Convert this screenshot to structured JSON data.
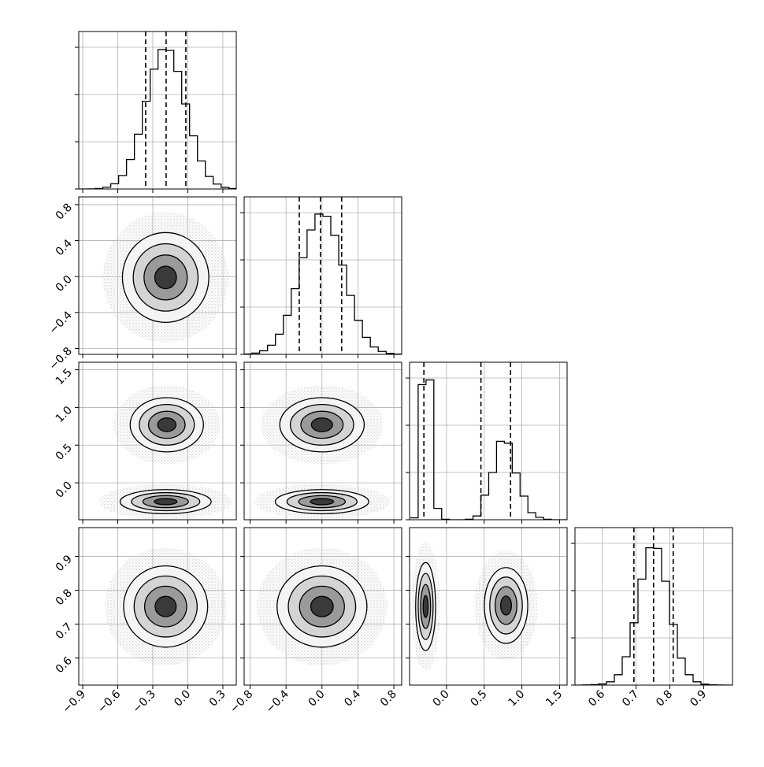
{
  "chart_data": {
    "type": "corner",
    "grid": true,
    "color": "#000000",
    "contour_sigmas": [
      0.5,
      1,
      1.5,
      2
    ],
    "contour_fills": [
      "#f4f4f4",
      "#d4d4d4",
      "#9a9a9a",
      "#3a3a3a"
    ],
    "hist_ylim": [
      0,
      1667
    ],
    "hist_yticks": [
      0,
      500,
      1000,
      1500
    ],
    "params": [
      {
        "lim": [
          -0.934,
          0.415
        ],
        "ticks": [
          {
            "value": -0.9,
            "label": "−0.9"
          },
          {
            "value": -0.6,
            "label": "−0.6"
          },
          {
            "value": -0.3,
            "label": "−0.3"
          },
          {
            "value": 0,
            "label": "0.0"
          },
          0.3
        ],
        "quantiles": [
          -0.361,
          -0.186,
          -0.017
        ],
        "bins": [
          -0.93,
          -0.8625,
          -0.795,
          -0.7275,
          -0.66,
          -0.5925,
          -0.525,
          -0.4575,
          -0.39,
          -0.3225,
          -0.255,
          -0.1875,
          -0.12,
          -0.0525,
          0.015,
          0.0825,
          0.15,
          0.2175,
          0.285,
          0.3525,
          0.42
        ],
        "counts": [
          0,
          1,
          5,
          19,
          55,
          143,
          312,
          580,
          928,
          1268,
          1476,
          1467,
          1245,
          900,
          563,
          297,
          133,
          52,
          17,
          5
        ]
      },
      {
        "lim": [
          -0.866,
          0.887
        ],
        "ticks": [
          {
            "value": -0.8,
            "label": "−0.8"
          },
          {
            "value": -0.4,
            "label": "−0.4"
          },
          {
            "value": 0,
            "label": "0.0"
          },
          0.4,
          0.8
        ],
        "quantiles": [
          -0.253,
          -0.017,
          0.219
        ],
        "bins": [
          -0.87,
          -0.782,
          -0.694,
          -0.606,
          -0.518,
          -0.43,
          -0.342,
          -0.254,
          -0.166,
          -0.078,
          0.01,
          0.098,
          0.186,
          0.274,
          0.362,
          0.45,
          0.538,
          0.626,
          0.714,
          0.802,
          0.89
        ],
        "counts": [
          4,
          13,
          38,
          97,
          213,
          413,
          695,
          1023,
          1317,
          1485,
          1462,
          1260,
          945,
          624,
          360,
          180,
          78,
          31,
          10,
          3
        ]
      },
      {
        "lim": [
          -0.49,
          1.6
        ],
        "ticks": [
          {
            "value": 0,
            "label": "0.0"
          },
          0.5,
          {
            "value": 1,
            "label": "1.0"
          },
          1.5
        ],
        "quantiles": [
          -0.3,
          0.457,
          0.85
        ],
        "bins": [
          -0.48,
          -0.376,
          -0.272,
          -0.168,
          -0.064,
          0.04,
          0.144,
          0.248,
          0.352,
          0.456,
          0.56,
          0.664,
          0.768,
          0.872,
          0.976,
          1.08,
          1.184,
          1.288,
          1.392,
          1.496,
          1.6
        ],
        "counts": [
          20,
          1430,
          1480,
          120,
          5,
          0,
          0,
          5,
          40,
          260,
          500,
          830,
          810,
          495,
          250,
          75,
          25,
          5,
          0,
          0
        ]
      },
      {
        "lim": [
          0.52,
          0.985
        ],
        "ticks": [
          0.6,
          0.7,
          0.8,
          0.9
        ],
        "quantiles": [
          0.694,
          0.752,
          0.81
        ],
        "bins": [
          0.52,
          0.54325,
          0.5665,
          0.58975,
          0.613,
          0.63625,
          0.6595,
          0.68275,
          0.706,
          0.72925,
          0.7525,
          0.77575,
          0.799,
          0.82225,
          0.8455,
          0.86875,
          0.892,
          0.91525,
          0.9385,
          0.96175,
          0.985
        ],
        "counts": [
          0,
          2,
          5,
          12,
          35,
          110,
          300,
          660,
          1122,
          1454,
          1447,
          1099,
          643,
          286,
          110,
          35,
          10,
          3,
          1,
          0
        ]
      }
    ],
    "panels": [
      {
        "row": 1,
        "col": 0,
        "blobs": [
          {
            "cx": -0.19,
            "cy": -0.01,
            "sx": 0.185,
            "sy": 0.25
          }
        ]
      },
      {
        "row": 2,
        "col": 0,
        "blobs": [
          {
            "cx": -0.18,
            "cy": 0.77,
            "sx": 0.157,
            "sy": 0.18
          },
          {
            "cx": -0.19,
            "cy": -0.25,
            "sx": 0.195,
            "sy": 0.08
          }
        ]
      },
      {
        "row": 2,
        "col": 1,
        "blobs": [
          {
            "cx": 0.0,
            "cy": 0.77,
            "sx": 0.235,
            "sy": 0.18
          },
          {
            "cx": 0.0,
            "cy": -0.25,
            "sx": 0.26,
            "sy": 0.08
          }
        ]
      },
      {
        "row": 3,
        "col": 0,
        "blobs": [
          {
            "cx": -0.19,
            "cy": 0.752,
            "sx": 0.18,
            "sy": 0.06
          }
        ]
      },
      {
        "row": 3,
        "col": 1,
        "blobs": [
          {
            "cx": 0.0,
            "cy": 0.752,
            "sx": 0.25,
            "sy": 0.06
          }
        ]
      },
      {
        "row": 3,
        "col": 2,
        "blobs": [
          {
            "cx": -0.277,
            "cy": 0.752,
            "sx": 0.066,
            "sy": 0.065
          },
          {
            "cx": 0.79,
            "cy": 0.755,
            "sx": 0.144,
            "sy": 0.056
          }
        ]
      }
    ]
  }
}
